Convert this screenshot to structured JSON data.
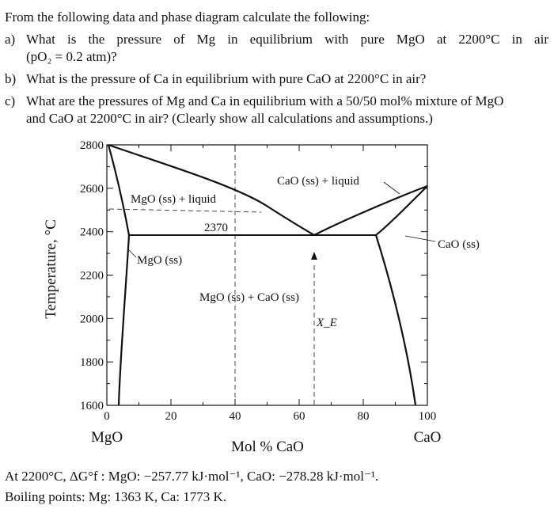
{
  "problem": {
    "intro": "From the following data and phase diagram calculate the following:",
    "items": [
      {
        "label": "a)",
        "lines": [
          "What is the pressure of Mg in equilibrium with pure MgO at 2200°C in air",
          "(pO₂ = 0.2 atm)?"
        ]
      },
      {
        "label": "b)",
        "lines": [
          "What is the pressure of Ca in equilibrium with pure CaO at 2200°C in air?"
        ]
      },
      {
        "label": "c)",
        "lines": [
          "What are the pressures of Mg and Ca in equilibrium with a 50/50 mol% mixture of MgO",
          "and CaO at 2200°C in air? (Clearly show all calculations and assumptions.)"
        ]
      }
    ]
  },
  "figure": {
    "y_axis_label": "Temperature, °C",
    "x_axis_label": "Mol % CaO",
    "yticks": [
      "2800",
      "2600",
      "2400",
      "2200",
      "2000",
      "1800",
      "1600"
    ],
    "xticks": [
      "0",
      "20",
      "40",
      "60",
      "80",
      "100"
    ],
    "x_end_labels": [
      "MgO",
      "CaO"
    ],
    "regions": [
      "CaO (ss) + liquid",
      "MgO (ss) + liquid",
      "MgO (ss)",
      "MgO (ss) + CaO (ss)",
      "CaO (ss)"
    ],
    "eutectic_temperature": "2370",
    "eutectic_composition": "X_E"
  },
  "footer": [
    "At 2200°C, ΔG°f :  MgO: −257.77 kJ·mol⁻¹,  CaO: −278.28 kJ·mol⁻¹.",
    "Boiling points:  Mg: 1363 K, Ca: 1773 K."
  ]
}
